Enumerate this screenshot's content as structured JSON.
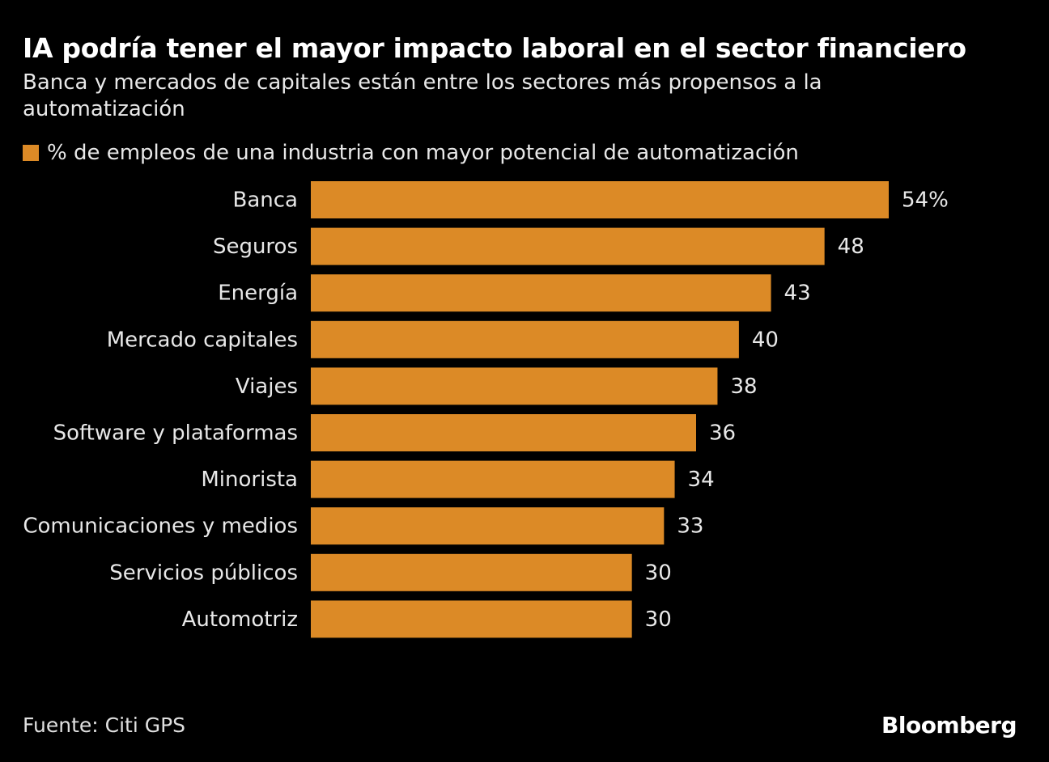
{
  "chart_data": {
    "type": "bar",
    "orientation": "horizontal",
    "title": "IA podría tener el mayor impacto laboral en el sector financiero",
    "subtitle": "Banca y mercados de capitales están entre los sectores más propensos a la automatización",
    "categories": [
      "Banca",
      "Seguros",
      "Energía",
      "Mercado capitales",
      "Viajes",
      "Software y plataformas",
      "Minorista",
      "Comunicaciones y medios",
      "Servicios públicos",
      "Automotriz"
    ],
    "series": [
      {
        "name": "% de empleos de una industria con mayor potencial de automatización",
        "color": "#dc8a26",
        "values": [
          54,
          48,
          43,
          40,
          38,
          36,
          34,
          33,
          30,
          30
        ],
        "value_labels": [
          "54%",
          "48",
          "43",
          "40",
          "38",
          "36",
          "34",
          "33",
          "30",
          "30"
        ]
      }
    ],
    "source": "Fuente: Citi GPS",
    "brand": "Bloomberg"
  }
}
